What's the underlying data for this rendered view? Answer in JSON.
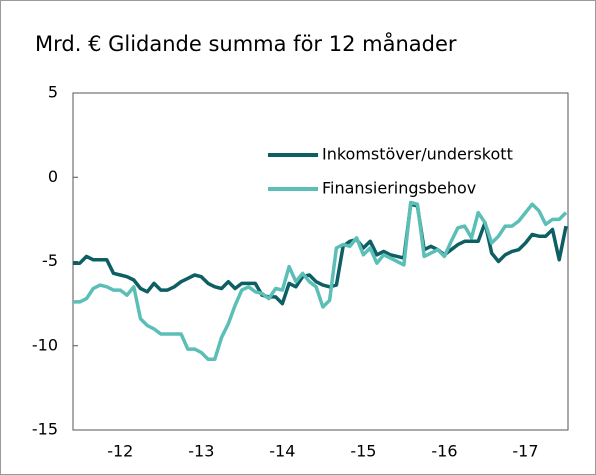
{
  "chart_data": {
    "type": "line",
    "title": "Mrd. € Glidande summa för 12 månader",
    "categories": [
      null,
      null,
      null,
      null,
      null,
      null,
      null,
      "-12",
      null,
      null,
      null,
      null,
      null,
      null,
      null,
      null,
      null,
      null,
      null,
      "-13",
      null,
      null,
      null,
      null,
      null,
      null,
      null,
      null,
      null,
      null,
      null,
      "-14",
      null,
      null,
      null,
      null,
      null,
      null,
      null,
      null,
      null,
      null,
      null,
      "-15",
      null,
      null,
      null,
      null,
      null,
      null,
      null,
      null,
      null,
      null,
      null,
      "-16",
      null,
      null,
      null,
      null,
      null,
      null,
      null,
      null,
      null,
      null,
      null,
      "-17",
      null,
      null,
      null,
      null,
      null,
      null
    ],
    "series": [
      {
        "name": "Inkomstöver/underskott",
        "color": "#0e5f63",
        "values": [
          -5.1,
          -5.1,
          -4.7,
          -4.9,
          -4.9,
          -4.9,
          -5.7,
          -5.8,
          -5.9,
          -6.1,
          -6.6,
          -6.8,
          -6.3,
          -6.7,
          -6.7,
          -6.5,
          -6.2,
          -6.0,
          -5.8,
          -5.9,
          -6.3,
          -6.5,
          -6.6,
          -6.2,
          -6.6,
          -6.3,
          -6.3,
          -6.3,
          -7.0,
          -7.1,
          -7.1,
          -7.5,
          -6.3,
          -6.5,
          -5.9,
          -5.8,
          -6.2,
          -6.4,
          -6.5,
          -6.4,
          -4.1,
          -3.8,
          -3.7,
          -4.2,
          -3.8,
          -4.6,
          -4.4,
          -4.6,
          -4.7,
          -4.8,
          -1.6,
          -1.7,
          -4.3,
          -4.1,
          -4.3,
          -4.6,
          -4.3,
          -4.0,
          -3.8,
          -3.8,
          -3.8,
          -2.7,
          -4.5,
          -5.0,
          -4.6,
          -4.4,
          -4.3,
          -3.9,
          -3.4,
          -3.5,
          -3.5,
          -3.1,
          -4.9,
          -2.9
        ]
      },
      {
        "name": "Finansieringsbehov",
        "color": "#5bbfb7",
        "values": [
          -7.4,
          -7.4,
          -7.2,
          -6.6,
          -6.4,
          -6.5,
          -6.7,
          -6.7,
          -7.0,
          -6.5,
          -8.4,
          -8.8,
          -9.0,
          -9.3,
          -9.3,
          -9.3,
          -9.3,
          -10.2,
          -10.2,
          -10.4,
          -10.8,
          -10.8,
          -9.5,
          -8.7,
          -7.6,
          -6.7,
          -6.5,
          -6.8,
          -6.9,
          -7.2,
          -6.6,
          -6.7,
          -5.3,
          -6.2,
          -5.7,
          -6.2,
          -6.5,
          -7.7,
          -7.3,
          -4.2,
          -4.0,
          -4.1,
          -3.6,
          -4.6,
          -4.2,
          -5.1,
          -4.6,
          -4.8,
          -5.0,
          -5.2,
          -1.5,
          -1.6,
          -4.7,
          -4.5,
          -4.3,
          -4.7,
          -3.8,
          -3.0,
          -2.9,
          -3.6,
          -2.1,
          -2.7,
          -3.9,
          -3.5,
          -2.9,
          -2.9,
          -2.6,
          -2.1,
          -1.6,
          -2.0,
          -2.8,
          -2.5,
          -2.5,
          -2.1
        ]
      }
    ],
    "ylim": [
      -15,
      5
    ],
    "yticks": [
      -15,
      -10,
      -5,
      0,
      5
    ],
    "grid": false,
    "legend": "upper right"
  }
}
